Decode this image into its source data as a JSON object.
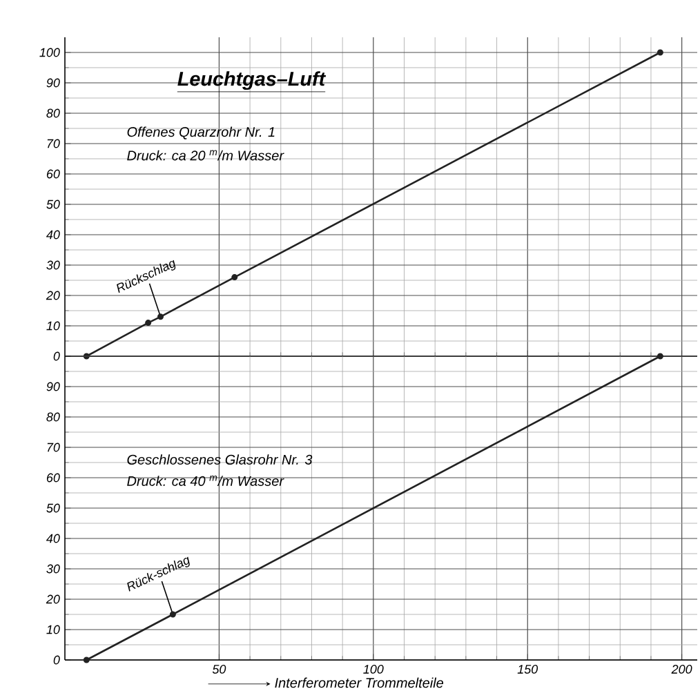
{
  "chart_data": [
    {
      "type": "line",
      "title": "Leuchtgas–Luft",
      "annotations": [
        "Offenes Quarzrohr Nr. 1",
        "Druck: ca 20 $^{m}$/m Wasser",
        {
          "text": "Rückschlag",
          "x": 31,
          "y": 13
        }
      ],
      "series": [
        {
          "color": "#222222",
          "x": [
            7,
            27,
            31,
            55,
            193
          ],
          "values": [
            0,
            11,
            13,
            26,
            100
          ]
        }
      ],
      "xlim": [
        0,
        205
      ],
      "ylim": [
        0,
        105
      ],
      "xticks": [
        50,
        100,
        150,
        200
      ],
      "yticks": [
        0,
        10,
        20,
        30,
        40,
        50,
        60,
        70,
        80,
        90,
        100
      ],
      "tick_labels": "y",
      "grid": true,
      "marker": "circle",
      "line_style": "solid"
    },
    {
      "type": "line",
      "xlabel": "Interferometer Trommelteile",
      "annotations": [
        "Geschlossenes Glasrohr Nr. 3",
        "Druck: ca 40 $^{m}$/m Wasser",
        {
          "text": "Rück-schlag",
          "x": 35,
          "y": 15
        }
      ],
      "series": [
        {
          "color": "#222222",
          "x": [
            7,
            35,
            193
          ],
          "values": [
            0,
            15,
            100
          ]
        }
      ],
      "xlim": [
        0,
        205
      ],
      "ylim": [
        0,
        100
      ],
      "xticks": [
        50,
        100,
        150,
        200
      ],
      "yticks": [
        0,
        10,
        20,
        30,
        40,
        50,
        60,
        70,
        80,
        90,
        {
          "value": 100,
          "label": null
        }
      ],
      "grid": true,
      "marker": "circle",
      "line_style": "solid"
    }
  ]
}
